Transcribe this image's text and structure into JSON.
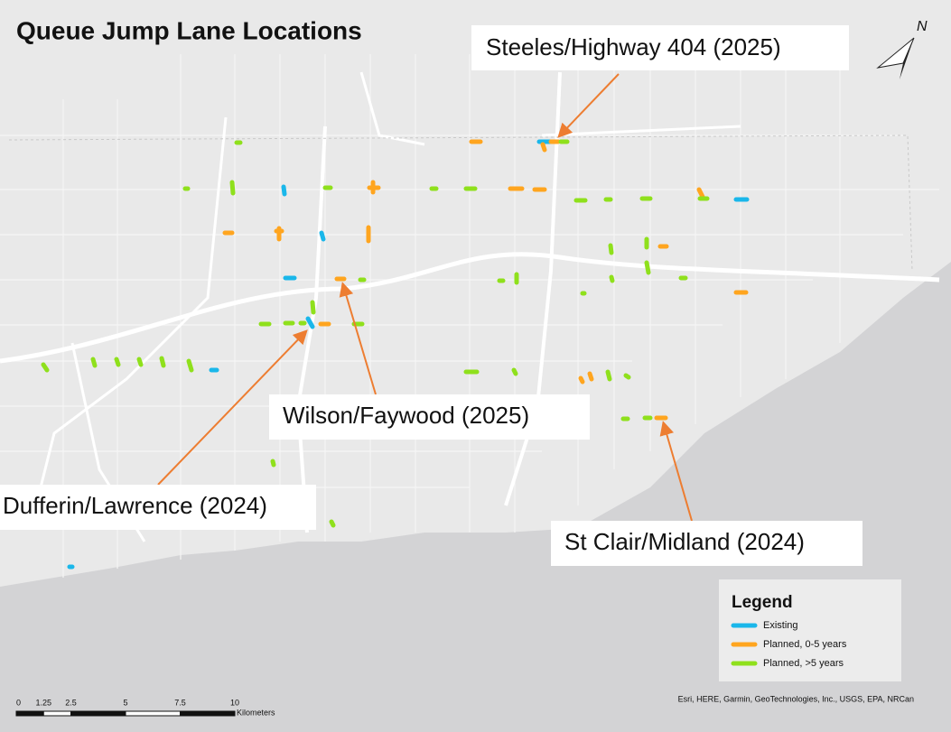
{
  "title": "Queue Jump Lane Locations",
  "callouts": [
    "Steeles/Highway 404 (2025)",
    "Wilson/Faywood (2025)",
    "Dufferin/Lawrence (2024)",
    "St Clair/Midland (2024)"
  ],
  "north": "N",
  "legend": {
    "title": "Legend",
    "items": [
      {
        "label": "Existing",
        "color": "#1ab7ea"
      },
      {
        "label": "Planned, 0-5 years",
        "color": "#ffa51f"
      },
      {
        "label": "Planned, >5 years",
        "color": "#8fe01c"
      }
    ]
  },
  "scale_bar": {
    "ticks": [
      0,
      1.25,
      2.5,
      5,
      7.5,
      10
    ],
    "unit": "Kilometers"
  },
  "attribution": "Esri, HERE, Garmin, GeoTechnologies, Inc., USGS, EPA, NRCan"
}
